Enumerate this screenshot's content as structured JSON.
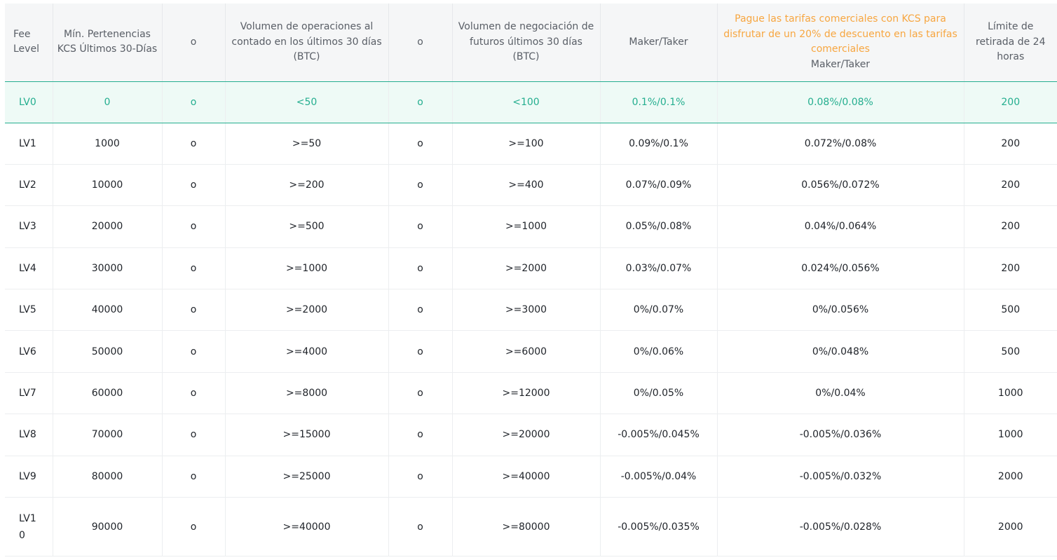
{
  "table": {
    "headers": {
      "fee_level": "Fee Level",
      "min_holdings": "Mín. Pertenencias KCS Últimos 30-Días",
      "or1": "o",
      "spot_volume": "Volumen de operaciones al contado en los últimos 30 días (BTC)",
      "or2": "o",
      "futures_volume": "Volumen de negociación de futuros últimos 30 días (BTC)",
      "maker_taker": "Maker/Taker",
      "kcs_promo": "Pague las tarifas comerciales con KCS para disfrutar de un 20% de descuento en las tarifas comerciales",
      "kcs_maker_taker": "Maker/Taker",
      "withdraw_limit": "Límite de retirada de 24 horas"
    },
    "rows": [
      {
        "level": "LV0",
        "kcs": "0",
        "or1": "o",
        "spot": "<50",
        "or2": "o",
        "futures": "<100",
        "fee": "0.1%/0.1%",
        "kcs_fee": "0.08%/0.08%",
        "limit": "200"
      },
      {
        "level": "LV1",
        "kcs": "1000",
        "or1": "o",
        "spot": ">=50",
        "or2": "o",
        "futures": ">=100",
        "fee": "0.09%/0.1%",
        "kcs_fee": "0.072%/0.08%",
        "limit": "200"
      },
      {
        "level": "LV2",
        "kcs": "10000",
        "or1": "o",
        "spot": ">=200",
        "or2": "o",
        "futures": ">=400",
        "fee": "0.07%/0.09%",
        "kcs_fee": "0.056%/0.072%",
        "limit": "200"
      },
      {
        "level": "LV3",
        "kcs": "20000",
        "or1": "o",
        "spot": ">=500",
        "or2": "o",
        "futures": ">=1000",
        "fee": "0.05%/0.08%",
        "kcs_fee": "0.04%/0.064%",
        "limit": "200"
      },
      {
        "level": "LV4",
        "kcs": "30000",
        "or1": "o",
        "spot": ">=1000",
        "or2": "o",
        "futures": ">=2000",
        "fee": "0.03%/0.07%",
        "kcs_fee": "0.024%/0.056%",
        "limit": "200"
      },
      {
        "level": "LV5",
        "kcs": "40000",
        "or1": "o",
        "spot": ">=2000",
        "or2": "o",
        "futures": ">=3000",
        "fee": "0%/0.07%",
        "kcs_fee": "0%/0.056%",
        "limit": "500"
      },
      {
        "level": "LV6",
        "kcs": "50000",
        "or1": "o",
        "spot": ">=4000",
        "or2": "o",
        "futures": ">=6000",
        "fee": "0%/0.06%",
        "kcs_fee": "0%/0.048%",
        "limit": "500"
      },
      {
        "level": "LV7",
        "kcs": "60000",
        "or1": "o",
        "spot": ">=8000",
        "or2": "o",
        "futures": ">=12000",
        "fee": "0%/0.05%",
        "kcs_fee": "0%/0.04%",
        "limit": "1000"
      },
      {
        "level": "LV8",
        "kcs": "70000",
        "or1": "o",
        "spot": ">=15000",
        "or2": "o",
        "futures": ">=20000",
        "fee": "-0.005%/0.045%",
        "kcs_fee": "-0.005%/0.036%",
        "limit": "1000"
      },
      {
        "level": "LV9",
        "kcs": "80000",
        "or1": "o",
        "spot": ">=25000",
        "or2": "o",
        "futures": ">=40000",
        "fee": "-0.005%/0.04%",
        "kcs_fee": "-0.005%/0.032%",
        "limit": "2000"
      },
      {
        "level": "LV10",
        "kcs": "90000",
        "or1": "o",
        "spot": ">=40000",
        "or2": "o",
        "futures": ">=80000",
        "fee": "-0.005%/0.035%",
        "kcs_fee": "-0.005%/0.028%",
        "limit": "2000"
      }
    ]
  },
  "colors": {
    "accent_green": "#24ae8f",
    "promo_orange": "#f7a640",
    "header_bg": "#f5f6f7",
    "current_row_bg": "#eefaf6"
  }
}
